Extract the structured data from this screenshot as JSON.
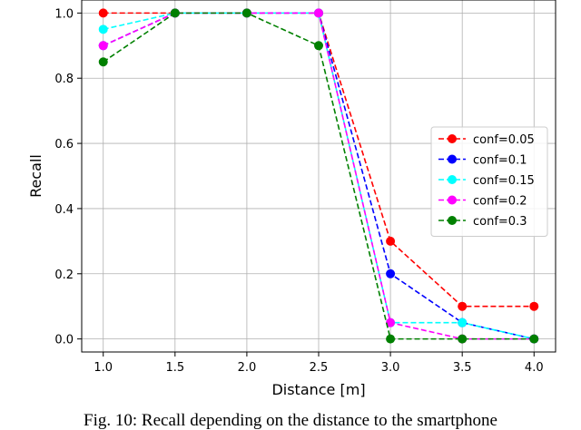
{
  "chart_data": {
    "type": "line",
    "xlabel": "Distance [m]",
    "ylabel": "Recall",
    "x": [
      1.0,
      1.5,
      2.0,
      2.5,
      3.0,
      3.5,
      4.0
    ],
    "xticks": [
      "1.0",
      "1.5",
      "2.0",
      "2.5",
      "3.0",
      "3.5",
      "4.0"
    ],
    "yticks": [
      "0.0",
      "0.2",
      "0.4",
      "0.6",
      "0.8",
      "1.0"
    ],
    "xlim": [
      0.85,
      4.15
    ],
    "ylim": [
      -0.04,
      1.04
    ],
    "grid": true,
    "legend_position": "center-right",
    "series": [
      {
        "name": "conf=0.05",
        "color": "#ff0000",
        "values": [
          1.0,
          1.0,
          1.0,
          1.0,
          0.3,
          0.1,
          0.1
        ]
      },
      {
        "name": "conf=0.1",
        "color": "#0000ff",
        "values": [
          0.9,
          1.0,
          1.0,
          1.0,
          0.2,
          0.05,
          0.0
        ]
      },
      {
        "name": "conf=0.15",
        "color": "#00ffff",
        "values": [
          0.95,
          1.0,
          1.0,
          1.0,
          0.05,
          0.05,
          0.0
        ]
      },
      {
        "name": "conf=0.2",
        "color": "#ff00ff",
        "values": [
          0.9,
          1.0,
          1.0,
          1.0,
          0.05,
          0.0,
          0.0
        ]
      },
      {
        "name": "conf=0.3",
        "color": "#008000",
        "values": [
          0.85,
          1.0,
          1.0,
          0.9,
          0.0,
          0.0,
          0.0
        ]
      }
    ]
  },
  "caption": "Fig. 10: Recall depending on the distance to the smartphone"
}
